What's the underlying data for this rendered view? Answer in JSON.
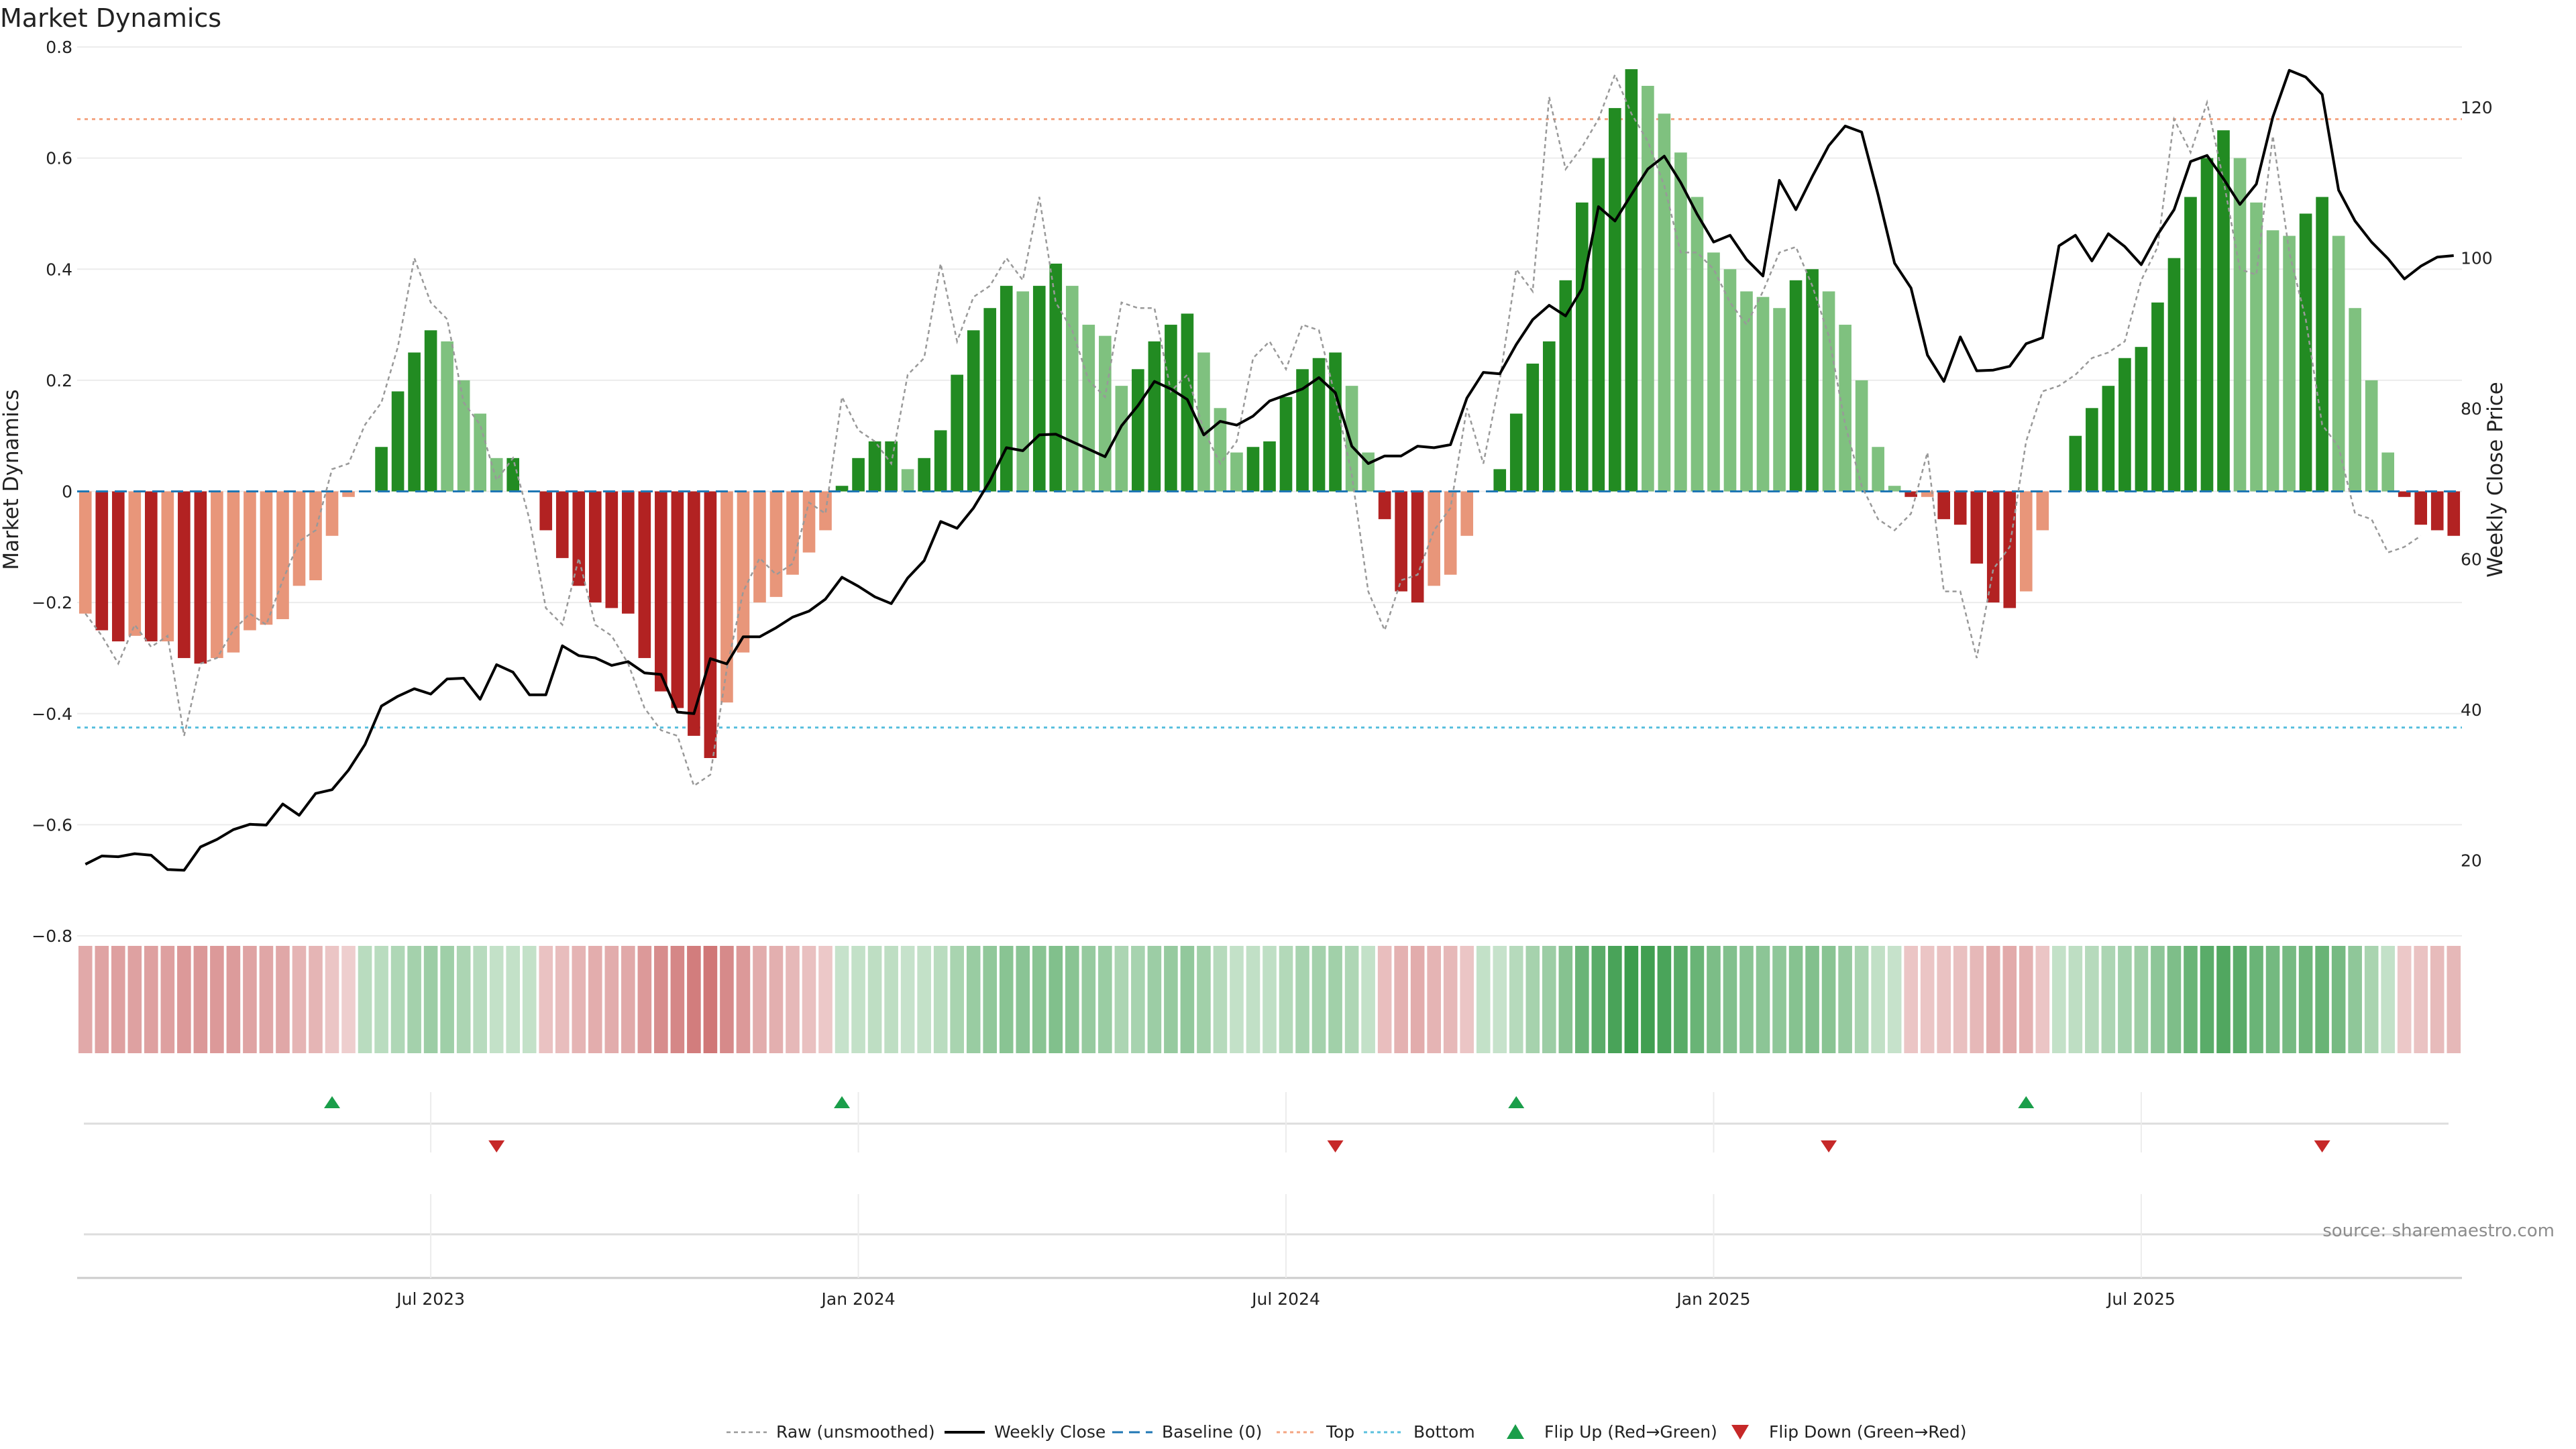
{
  "chart_data": {
    "type": "bar",
    "title": "Market Dynamics",
    "ylabel": "Market Dynamics",
    "y2label": "Weekly Close Price",
    "ylim": [
      -0.8,
      0.8
    ],
    "y2lim": [
      10,
      128
    ],
    "y_ticks": [
      "0.8",
      "0.6",
      "0.4",
      "0.2",
      "0",
      "−0.2",
      "−0.4",
      "−0.6",
      "−0.8"
    ],
    "y2_ticks": [
      "120",
      "100",
      "80",
      "60",
      "40",
      "20"
    ],
    "x_ticks": [
      "Jul 2023",
      "Jan 2024",
      "Jul 2024",
      "Jan 2025",
      "Jul 2025"
    ],
    "x_tick_index": [
      21,
      47,
      73,
      99,
      125
    ],
    "top_level": 0.67,
    "bottom_level": -0.425,
    "grid": true,
    "legend_position": "bottom-center",
    "legend": [
      "Raw (unsmoothed)",
      "Weekly Close",
      "Baseline (0)",
      "Top",
      "Bottom",
      "Flip Up (Red→Green)",
      "Flip Down (Green→Red)"
    ],
    "source": "source: sharemaestro.com",
    "colors": {
      "strong_green": "#228B22",
      "light_green": "#7fc17f",
      "strong_red": "#b22222",
      "light_red": "#e8967a",
      "close_line": "#000000",
      "raw_line": "#999999",
      "baseline": "#1f77b4",
      "top": "#f4a582",
      "bottom": "#5bc0de",
      "flip_up": "#1a9e4a",
      "flip_down": "#c62828"
    },
    "momentum": [
      -0.22,
      -0.25,
      -0.27,
      -0.26,
      -0.27,
      -0.27,
      -0.3,
      -0.31,
      -0.3,
      -0.29,
      -0.25,
      -0.24,
      -0.23,
      -0.17,
      -0.16,
      -0.08,
      -0.01,
      0.0,
      0.08,
      0.18,
      0.25,
      0.29,
      0.27,
      0.2,
      0.14,
      0.06,
      0.06,
      0.0,
      -0.07,
      -0.12,
      -0.17,
      -0.2,
      -0.21,
      -0.22,
      -0.3,
      -0.36,
      -0.39,
      -0.44,
      -0.48,
      -0.38,
      -0.29,
      -0.2,
      -0.19,
      -0.15,
      -0.11,
      -0.07,
      0.01,
      0.06,
      0.09,
      0.09,
      0.04,
      0.06,
      0.11,
      0.21,
      0.29,
      0.33,
      0.37,
      0.36,
      0.37,
      0.41,
      0.37,
      0.3,
      0.28,
      0.19,
      0.22,
      0.27,
      0.3,
      0.32,
      0.25,
      0.15,
      0.07,
      0.08,
      0.09,
      0.17,
      0.22,
      0.24,
      0.25,
      0.19,
      0.07,
      -0.05,
      -0.18,
      -0.2,
      -0.17,
      -0.15,
      -0.08,
      0.0,
      0.04,
      0.14,
      0.23,
      0.27,
      0.38,
      0.52,
      0.6,
      0.69,
      0.76,
      0.73,
      0.68,
      0.61,
      0.53,
      0.43,
      0.4,
      0.36,
      0.35,
      0.33,
      0.38,
      0.4,
      0.36,
      0.3,
      0.2,
      0.08,
      0.01,
      -0.01,
      -0.01,
      -0.05,
      -0.06,
      -0.13,
      -0.2,
      -0.21,
      -0.18,
      -0.07,
      0.0,
      0.1,
      0.15,
      0.19,
      0.24,
      0.26,
      0.34,
      0.42,
      0.53,
      0.6,
      0.65,
      0.6,
      0.52,
      0.47,
      0.46,
      0.5,
      0.53,
      0.46,
      0.33,
      0.2,
      0.07,
      -0.01,
      -0.06,
      -0.07,
      -0.08
    ],
    "raw": [
      -0.22,
      -0.26,
      -0.31,
      -0.24,
      -0.28,
      -0.26,
      -0.44,
      -0.31,
      -0.3,
      -0.25,
      -0.22,
      -0.24,
      -0.16,
      -0.09,
      -0.07,
      0.04,
      0.05,
      0.12,
      0.16,
      0.26,
      0.42,
      0.34,
      0.31,
      0.16,
      0.12,
      0.02,
      0.06,
      -0.05,
      -0.21,
      -0.24,
      -0.12,
      -0.24,
      -0.26,
      -0.31,
      -0.39,
      -0.43,
      -0.44,
      -0.53,
      -0.51,
      -0.32,
      -0.18,
      -0.12,
      -0.15,
      -0.13,
      -0.02,
      -0.04,
      0.17,
      0.11,
      0.09,
      0.05,
      0.21,
      0.24,
      0.41,
      0.27,
      0.35,
      0.37,
      0.42,
      0.38,
      0.53,
      0.34,
      0.29,
      0.2,
      0.17,
      0.34,
      0.33,
      0.33,
      0.18,
      0.21,
      0.11,
      0.05,
      0.09,
      0.24,
      0.27,
      0.22,
      0.3,
      0.29,
      0.17,
      0.03,
      -0.18,
      -0.25,
      -0.16,
      -0.15,
      -0.07,
      -0.03,
      0.15,
      0.05,
      0.2,
      0.4,
      0.36,
      0.71,
      0.58,
      0.62,
      0.67,
      0.75,
      0.68,
      0.63,
      0.55,
      0.43,
      0.43,
      0.4,
      0.34,
      0.3,
      0.36,
      0.43,
      0.44,
      0.37,
      0.28,
      0.12,
      0.01,
      -0.05,
      -0.07,
      -0.04,
      0.07,
      -0.18,
      -0.18,
      -0.3,
      -0.14,
      -0.1,
      0.09,
      0.18,
      0.19,
      0.21,
      0.24,
      0.25,
      0.27,
      0.38,
      0.44,
      0.67,
      0.61,
      0.7,
      0.56,
      0.4,
      0.39,
      0.64,
      0.43,
      0.31,
      0.12,
      0.08,
      -0.04,
      -0.05,
      -0.11,
      -0.1,
      -0.08
    ],
    "close": [
      19.5,
      20.6,
      20.5,
      20.9,
      20.7,
      18.8,
      18.7,
      21.8,
      22.8,
      24.1,
      24.8,
      24.7,
      27.5,
      26.0,
      28.9,
      29.4,
      32.0,
      35.4,
      40.5,
      41.8,
      42.8,
      42.1,
      44.1,
      44.2,
      41.4,
      46.0,
      45.0,
      42.0,
      42.0,
      48.5,
      47.2,
      46.9,
      45.9,
      46.4,
      44.9,
      44.7,
      39.7,
      39.5,
      46.8,
      46.1,
      49.7,
      49.7,
      50.9,
      52.3,
      53.1,
      54.7,
      57.6,
      56.4,
      55.0,
      54.1,
      57.5,
      59.8,
      65.0,
      64.1,
      66.8,
      70.4,
      74.8,
      74.4,
      76.5,
      76.6,
      75.6,
      74.6,
      73.6,
      77.7,
      80.4,
      83.6,
      82.6,
      81.2,
      76.5,
      78.3,
      77.8,
      79.0,
      81.0,
      81.8,
      82.6,
      84.1,
      82.1,
      75.0,
      72.7,
      73.7,
      73.7,
      75.0,
      74.8,
      75.2,
      81.4,
      84.8,
      84.6,
      88.5,
      91.8,
      93.7,
      92.3,
      95.9,
      106.8,
      104.9,
      108.4,
      111.8,
      113.5,
      110.0,
      105.8,
      102.1,
      103.0,
      99.8,
      97.6,
      110.3,
      106.4,
      110.8,
      114.9,
      117.5,
      116.7,
      108.4,
      99.3,
      96.0,
      87.1,
      83.6,
      89.5,
      85.0,
      85.1,
      85.6,
      88.6,
      89.4,
      101.6,
      103.0,
      99.6,
      103.2,
      101.5,
      99.1,
      103.1,
      106.4,
      112.8,
      113.6,
      110.5,
      107.1,
      109.8,
      118.7,
      124.9,
      124.0,
      121.7,
      109.0,
      104.9,
      102.1,
      99.9,
      97.2,
      98.9,
      100.1,
      100.3
    ],
    "heat_intensity": [
      0.3,
      0.34,
      0.36,
      0.35,
      0.36,
      0.36,
      0.4,
      0.41,
      0.4,
      0.39,
      0.34,
      0.32,
      0.31,
      0.23,
      0.22,
      0.12,
      0.06,
      0.18,
      0.18,
      0.24,
      0.31,
      0.36,
      0.34,
      0.26,
      0.19,
      0.12,
      0.12,
      0.12,
      0.14,
      0.17,
      0.23,
      0.27,
      0.28,
      0.3,
      0.4,
      0.48,
      0.52,
      0.58,
      0.62,
      0.5,
      0.4,
      0.28,
      0.26,
      0.2,
      0.15,
      0.1,
      0.1,
      0.12,
      0.15,
      0.15,
      0.1,
      0.12,
      0.18,
      0.28,
      0.38,
      0.43,
      0.48,
      0.47,
      0.48,
      0.53,
      0.48,
      0.4,
      0.37,
      0.26,
      0.29,
      0.36,
      0.4,
      0.42,
      0.33,
      0.2,
      0.12,
      0.13,
      0.14,
      0.22,
      0.29,
      0.31,
      0.33,
      0.25,
      0.12,
      0.16,
      0.25,
      0.28,
      0.23,
      0.2,
      0.12,
      0.12,
      0.1,
      0.2,
      0.3,
      0.36,
      0.5,
      0.67,
      0.77,
      0.88,
      0.96,
      0.93,
      0.87,
      0.78,
      0.68,
      0.56,
      0.52,
      0.48,
      0.46,
      0.44,
      0.5,
      0.52,
      0.48,
      0.4,
      0.28,
      0.13,
      0.1,
      0.12,
      0.12,
      0.14,
      0.15,
      0.2,
      0.28,
      0.29,
      0.25,
      0.12,
      0.12,
      0.15,
      0.2,
      0.26,
      0.32,
      0.35,
      0.45,
      0.55,
      0.68,
      0.77,
      0.83,
      0.77,
      0.67,
      0.61,
      0.6,
      0.65,
      0.68,
      0.6,
      0.44,
      0.28,
      0.12,
      0.1,
      0.14,
      0.18,
      0.2
    ],
    "flip_up_index": [
      15,
      46,
      87,
      118
    ],
    "flip_down_index": [
      25,
      76,
      106,
      136
    ]
  }
}
